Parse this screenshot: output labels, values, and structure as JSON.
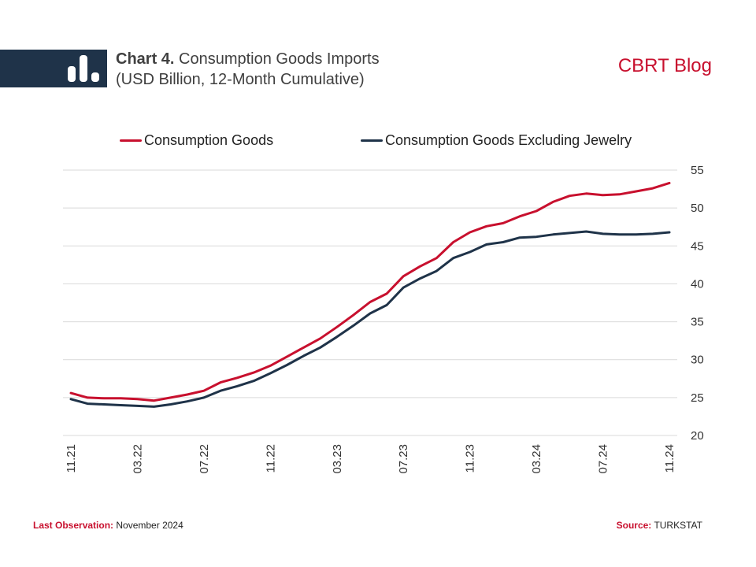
{
  "header": {
    "title_bold": "Chart 4.",
    "title_rest": "Consumption Goods Imports",
    "subtitle": "(USD Billion, 12-Month Cumulative)",
    "brand": "CBRT Blog",
    "brand_color": "#c8102e",
    "bar_color": "#1f3349",
    "icon": "bar-chart-icon"
  },
  "footer": {
    "last_obs_label": "Last Observation:",
    "last_obs_value": "November 2024",
    "source_label": "Source:",
    "source_value": "TURKSTAT"
  },
  "chart_data": {
    "type": "line",
    "title": "Consumption Goods Imports",
    "subtitle": "(USD Billion, 12-Month Cumulative)",
    "xlabel": "",
    "ylabel": "",
    "ylim": [
      20,
      55
    ],
    "yticks": [
      20,
      25,
      30,
      35,
      40,
      45,
      50,
      55
    ],
    "y_axis_side": "right",
    "grid": true,
    "legend_position": "top",
    "x": [
      "11.21",
      "12.21",
      "01.22",
      "02.22",
      "03.22",
      "04.22",
      "05.22",
      "06.22",
      "07.22",
      "08.22",
      "09.22",
      "10.22",
      "11.22",
      "12.22",
      "01.23",
      "02.23",
      "03.23",
      "04.23",
      "05.23",
      "06.23",
      "07.23",
      "08.23",
      "09.23",
      "10.23",
      "11.23",
      "12.23",
      "01.24",
      "02.24",
      "03.24",
      "04.24",
      "05.24",
      "06.24",
      "07.24",
      "08.24",
      "09.24",
      "10.24",
      "11.24"
    ],
    "xtick_labels": [
      "11.21",
      "03.22",
      "07.22",
      "11.22",
      "03.23",
      "07.23",
      "11.23",
      "03.24",
      "07.24",
      "11.24"
    ],
    "series": [
      {
        "name": "Consumption Goods",
        "color": "#c8102e",
        "values": [
          25.6,
          25.0,
          24.9,
          24.9,
          24.8,
          24.6,
          25.0,
          25.4,
          25.9,
          27.0,
          27.6,
          28.3,
          29.2,
          30.4,
          31.6,
          32.8,
          34.3,
          35.9,
          37.6,
          38.7,
          41.0,
          42.3,
          43.4,
          45.5,
          46.8,
          47.6,
          48.0,
          48.9,
          49.6,
          50.8,
          51.6,
          51.9,
          51.7,
          51.8,
          52.2,
          52.6,
          53.3
        ]
      },
      {
        "name": "Consumption Goods Excluding Jewelry",
        "color": "#1f3349",
        "values": [
          24.8,
          24.2,
          24.1,
          24.0,
          23.9,
          23.8,
          24.1,
          24.5,
          25.0,
          25.9,
          26.5,
          27.2,
          28.2,
          29.3,
          30.5,
          31.6,
          33.0,
          34.5,
          36.1,
          37.2,
          39.5,
          40.7,
          41.7,
          43.4,
          44.2,
          45.2,
          45.5,
          46.1,
          46.2,
          46.5,
          46.7,
          46.9,
          46.6,
          46.5,
          46.5,
          46.6,
          46.8
        ]
      }
    ]
  }
}
